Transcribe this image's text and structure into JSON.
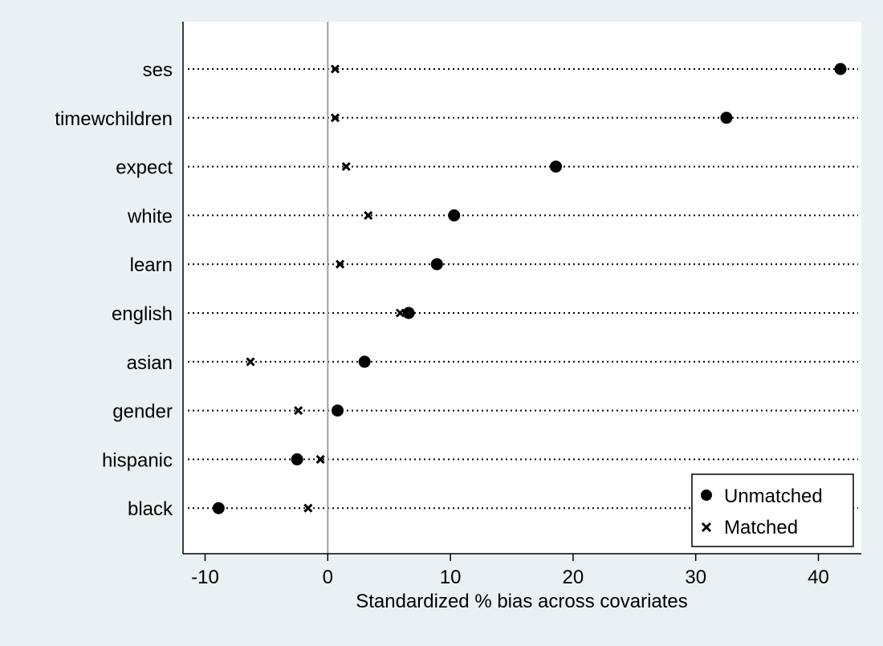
{
  "chart_data": {
    "type": "scatter",
    "title": "",
    "xlabel": "Standardized % bias across covariates",
    "ylabel": "",
    "xlim": [
      -11.8,
      43.5
    ],
    "xticks": [
      -10,
      0,
      10,
      20,
      30,
      40
    ],
    "xtick_labels": [
      "-10",
      "0",
      "10",
      "20",
      "30",
      "40"
    ],
    "reference_line_x": 0,
    "grid": "dotted horizontal lines at each covariate",
    "legend_position": "bottom-right",
    "categories": [
      "ses",
      "timewchildren",
      "expect",
      "white",
      "learn",
      "english",
      "asian",
      "gender",
      "hispanic",
      "black"
    ],
    "series": [
      {
        "name": "Unmatched",
        "marker": "circle",
        "values": [
          41.8,
          32.5,
          18.6,
          10.3,
          8.9,
          6.6,
          3.0,
          0.8,
          -2.5,
          -8.9
        ]
      },
      {
        "name": "Matched",
        "marker": "x",
        "values": [
          0.6,
          0.6,
          1.5,
          3.3,
          1.0,
          5.9,
          -6.3,
          -2.4,
          -0.6,
          -1.6
        ]
      }
    ]
  },
  "colors": {
    "background": "#eaf1f3",
    "plot_area": "#ffffff",
    "markers": "#000000",
    "reference_line": "#a0a0a0"
  }
}
